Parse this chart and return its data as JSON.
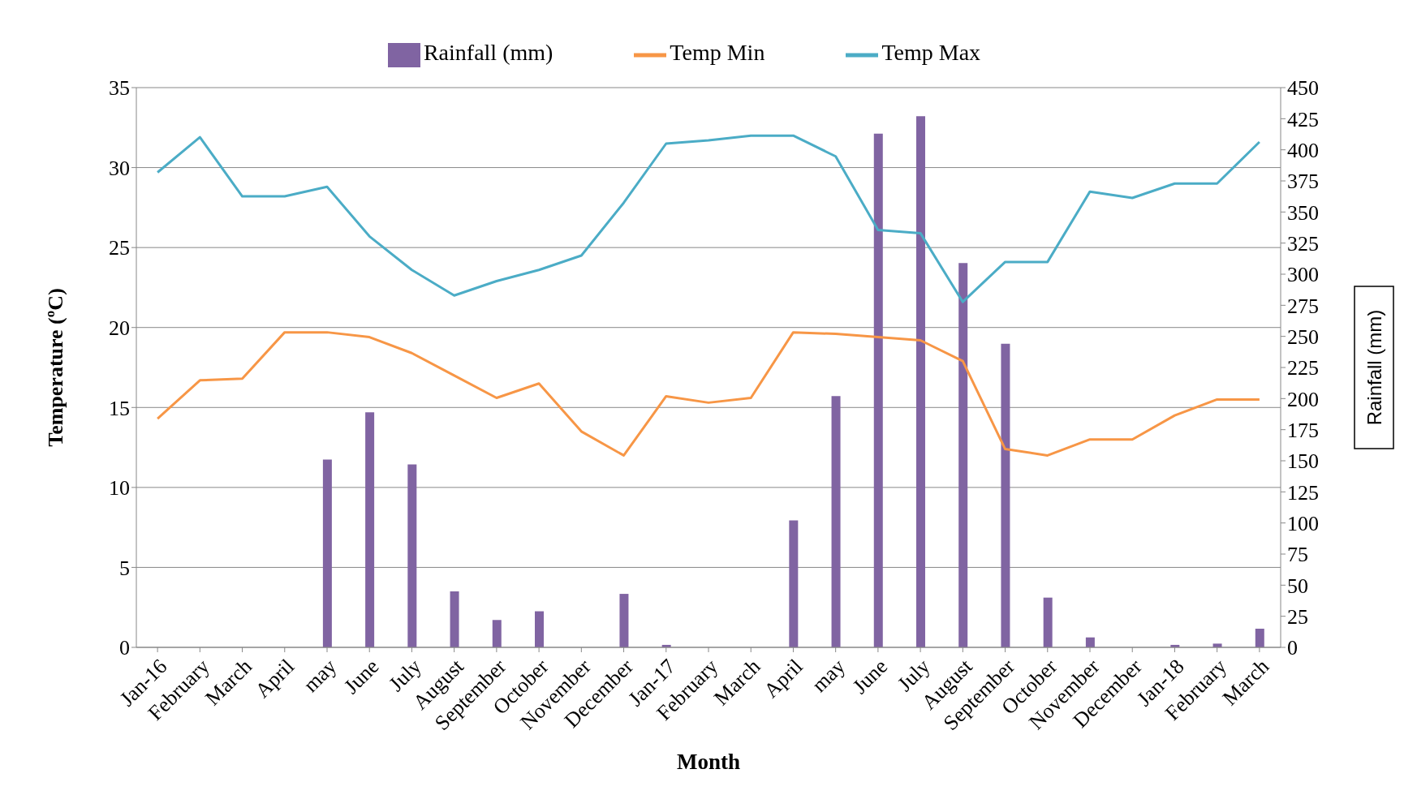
{
  "chart_data": {
    "type": "line",
    "xlabel": "Month",
    "ylabel": "Temperature (ºC)",
    "y2label": "Rainfall (mm)",
    "categories": [
      "Jan-16",
      "February",
      "March",
      "April",
      "may",
      "June",
      "July",
      "August",
      "September",
      "October",
      "November",
      "December",
      "Jan-17",
      "February",
      "March",
      "April",
      "may",
      "June",
      "July",
      "August",
      "September",
      "October",
      "November",
      "December",
      "Jan-18",
      "February",
      "March"
    ],
    "series": [
      {
        "name": "Rainfall (mm)",
        "type": "bar",
        "axis": "y2",
        "color": "#8064a2",
        "values": [
          0,
          0,
          0,
          0,
          151,
          189,
          147,
          45,
          22,
          29,
          0,
          43,
          2,
          0,
          0,
          102,
          202,
          413,
          427,
          309,
          244,
          40,
          8,
          0,
          2,
          3,
          15
        ]
      },
      {
        "name": "Temp Min",
        "color": "#f79646",
        "values": [
          14.3,
          16.7,
          16.8,
          19.7,
          19.7,
          19.4,
          18.4,
          17.0,
          15.6,
          16.5,
          13.5,
          12.0,
          15.7,
          15.3,
          15.6,
          19.7,
          19.6,
          19.4,
          19.2,
          17.9,
          12.4,
          12.0,
          13.0,
          13.0,
          14.5,
          15.5,
          15.5
        ]
      },
      {
        "name": "Temp Max",
        "color": "#4bacc6",
        "values": [
          29.7,
          31.9,
          28.2,
          28.2,
          28.8,
          25.7,
          23.6,
          22.0,
          22.9,
          23.6,
          24.5,
          27.8,
          31.5,
          31.7,
          32.0,
          32.0,
          30.7,
          26.1,
          25.9,
          21.6,
          24.1,
          24.1,
          28.5,
          28.1,
          29.0,
          29.0,
          31.6
        ]
      }
    ],
    "ylim": [
      0,
      35
    ],
    "yticks": [
      0,
      5,
      10,
      15,
      20,
      25,
      30,
      35
    ],
    "y2lim": [
      0,
      450
    ],
    "y2ticks": [
      0,
      25,
      50,
      75,
      100,
      125,
      150,
      175,
      200,
      225,
      250,
      275,
      300,
      325,
      350,
      375,
      400,
      425,
      450
    ],
    "grid": "y",
    "legend": "top",
    "marker": "none"
  }
}
